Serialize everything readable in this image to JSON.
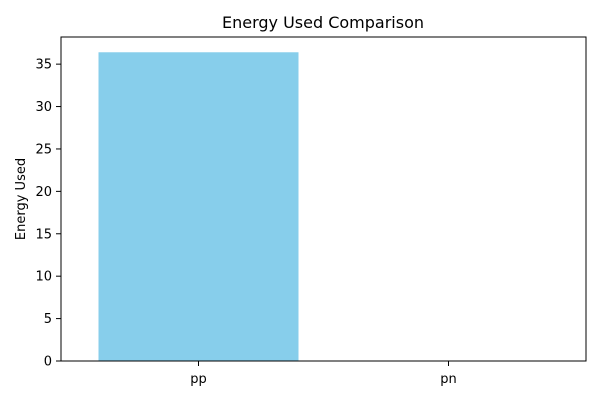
{
  "chart_data": {
    "type": "bar",
    "title": "Energy Used Comparison",
    "xlabel": "",
    "ylabel": "Energy Used",
    "categories": [
      "pp",
      "pn"
    ],
    "values": [
      36.4,
      0
    ],
    "ylim": [
      0,
      38.2
    ],
    "yticks": [
      0,
      5,
      10,
      15,
      20,
      25,
      30,
      35
    ],
    "bar_color": "#87CEEB",
    "grid": false,
    "legend": "none"
  }
}
